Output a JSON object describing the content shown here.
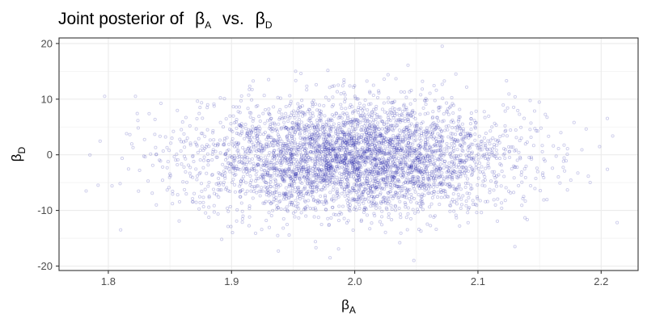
{
  "chart_data": {
    "type": "scatter",
    "title_parts": {
      "prefix": "Joint posterior of",
      "a_symbol": "β",
      "a_sub": "A",
      "middle": "vs.",
      "b_symbol": "β",
      "b_sub": "D"
    },
    "xlabel": {
      "symbol": "β",
      "sub": "A"
    },
    "ylabel": {
      "symbol": "β",
      "sub": "D"
    },
    "xlim": [
      1.76,
      2.23
    ],
    "ylim": [
      -20.8,
      21.0
    ],
    "x_ticks": [
      1.8,
      1.9,
      2.0,
      2.1,
      2.2
    ],
    "x_tick_labels": [
      "1.8",
      "1.9",
      "2.0",
      "2.1",
      "2.2"
    ],
    "y_ticks": [
      -20,
      -10,
      0,
      10,
      20
    ],
    "y_tick_labels": [
      "-20",
      "-10",
      "0",
      "10",
      "20"
    ],
    "grid": true,
    "point_color": "#1a1aa6",
    "point_opacity": 0.22,
    "distribution": {
      "n_points": 4000,
      "x_mean": 2.0,
      "x_sd": 0.065,
      "y_mean": -0.5,
      "y_sd": 5.0
    },
    "highlighted_points": [
      {
        "x": 1.797,
        "y": 10.5
      },
      {
        "x": 1.822,
        "y": 10.5
      },
      {
        "x": 1.782,
        "y": -6.5
      },
      {
        "x": 1.81,
        "y": -13.5
      },
      {
        "x": 2.071,
        "y": 19.5
      },
      {
        "x": 1.952,
        "y": 15.0
      },
      {
        "x": 2.213,
        "y": -12.2
      },
      {
        "x": 2.178,
        "y": 5.8
      },
      {
        "x": 2.048,
        "y": -19.0
      },
      {
        "x": 1.98,
        "y": -18.5
      },
      {
        "x": 2.13,
        "y": -16.5
      },
      {
        "x": 1.938,
        "y": -17.3
      }
    ]
  }
}
